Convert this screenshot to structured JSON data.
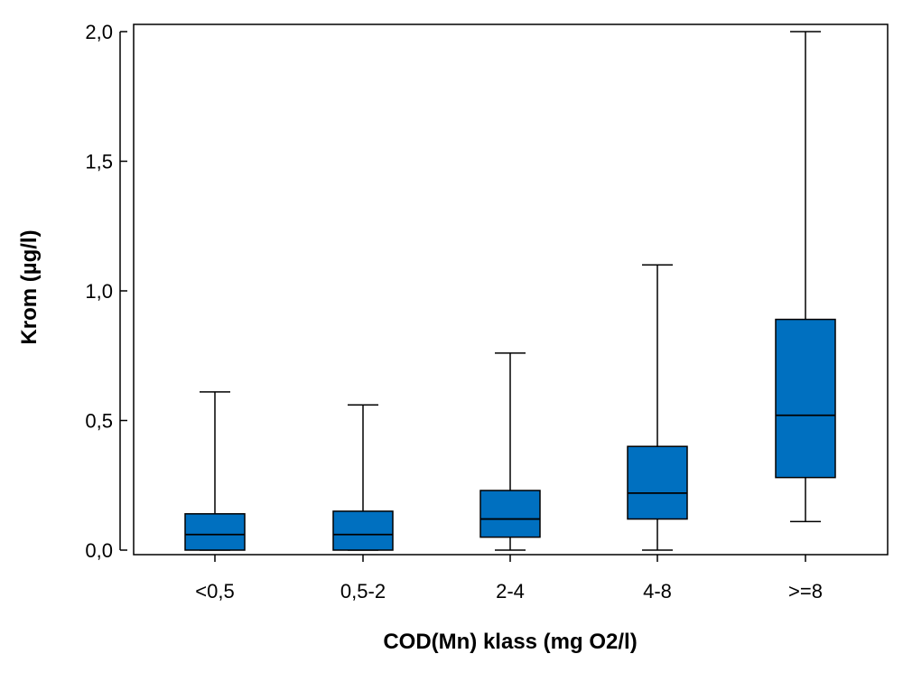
{
  "chart_data": {
    "type": "boxplot",
    "xlabel": "COD(Mn) klass (mg O2/l)",
    "ylabel": "Krom (µg/l)",
    "ylim": [
      0.0,
      2.0
    ],
    "yticks": [
      {
        "value": 0.0,
        "label": "0,0"
      },
      {
        "value": 0.5,
        "label": "0,5"
      },
      {
        "value": 1.0,
        "label": "1,0"
      },
      {
        "value": 1.5,
        "label": "1,5"
      },
      {
        "value": 2.0,
        "label": "2,0"
      }
    ],
    "categories": [
      "<0,5",
      "0,5-2",
      "2-4",
      "4-8",
      ">=8"
    ],
    "boxes": [
      {
        "category": "<0,5",
        "min": 0.0,
        "q1": 0.0,
        "median": 0.06,
        "q3": 0.14,
        "max": 0.61
      },
      {
        "category": "0,5-2",
        "min": 0.0,
        "q1": 0.0,
        "median": 0.06,
        "q3": 0.15,
        "max": 0.56
      },
      {
        "category": "2-4",
        "min": 0.0,
        "q1": 0.05,
        "median": 0.12,
        "q3": 0.23,
        "max": 0.76
      },
      {
        "category": "4-8",
        "min": 0.0,
        "q1": 0.12,
        "median": 0.22,
        "q3": 0.4,
        "max": 1.1
      },
      {
        "category": ">=8",
        "min": 0.11,
        "q1": 0.28,
        "median": 0.52,
        "q3": 0.89,
        "max": 2.0
      }
    ],
    "box_color": "#0070C0",
    "grid": false,
    "legend": "none"
  }
}
